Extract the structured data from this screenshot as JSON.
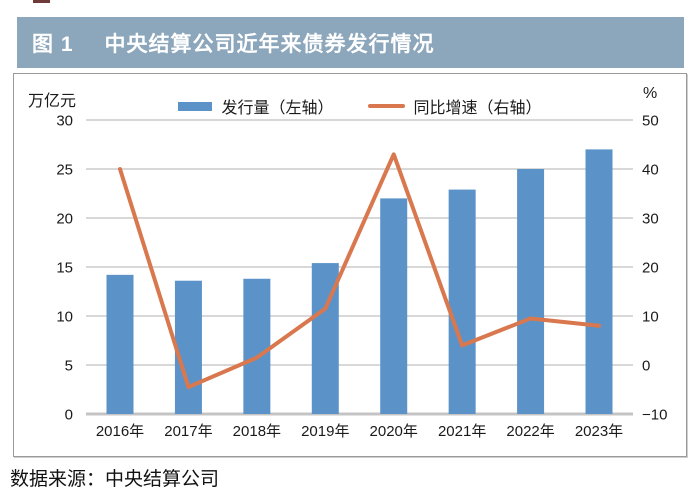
{
  "header": {
    "title_prefix": "图 1",
    "title_text": "中央结算公司近年来债券发行情况"
  },
  "chart": {
    "left_axis_unit": "万亿元",
    "right_axis_unit": "%",
    "legend": [
      {
        "label": "发行量（左轴）"
      },
      {
        "label": "同比增速（右轴）"
      }
    ]
  },
  "chart_data": {
    "type": "combo",
    "title": "中央结算公司近年来债券发行情况",
    "categories": [
      "2016年",
      "2017年",
      "2018年",
      "2019年",
      "2020年",
      "2021年",
      "2022年",
      "2023年"
    ],
    "series": [
      {
        "name": "发行量（左轴）",
        "type": "bar",
        "axis": "left",
        "unit": "万亿元",
        "color": "#5B93C8",
        "values": [
          14.2,
          13.6,
          13.8,
          15.4,
          22,
          22.9,
          25,
          27
        ]
      },
      {
        "name": "同比增速（右轴）",
        "type": "line",
        "axis": "right",
        "unit": "%",
        "color": "#D9784E",
        "values": [
          40,
          -4.5,
          1.5,
          11.5,
          43,
          4,
          9.5,
          8
        ]
      }
    ],
    "left_axis": {
      "label": "万亿元",
      "min": 0,
      "max": 30,
      "step": 5,
      "ticks": [
        0,
        5,
        10,
        15,
        20,
        25,
        30
      ]
    },
    "right_axis": {
      "label": "%",
      "min": -10,
      "max": 50,
      "step": 10,
      "ticks": [
        -10,
        0,
        10,
        20,
        30,
        40,
        50
      ]
    },
    "grid": true,
    "legend_position": "top",
    "colors": {
      "bar": "#5B93C8",
      "line": "#D9784E",
      "titlebar_bg": "#8CA6BB",
      "gridline": "#D8D8D8"
    }
  },
  "footer": {
    "source": "数据来源：中央结算公司"
  }
}
